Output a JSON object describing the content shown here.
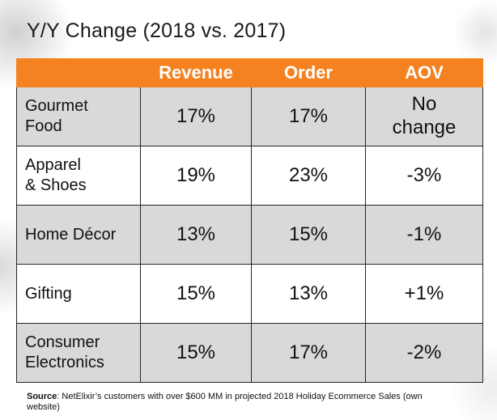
{
  "chart_data": {
    "type": "table",
    "title": "Y/Y Change (2018 vs. 2017)",
    "columns": [
      "",
      "Revenue",
      "Order",
      "AOV"
    ],
    "rows": [
      {
        "label": "Gourmet Food",
        "label_lines": [
          "Gourmet",
          "Food"
        ],
        "revenue": "17%",
        "order": "17%",
        "aov": "No change",
        "aov_lines": [
          "No",
          "change"
        ]
      },
      {
        "label": "Apparel & Shoes",
        "label_lines": [
          "Apparel",
          "& Shoes"
        ],
        "revenue": "19%",
        "order": "23%",
        "aov": "-3%",
        "aov_lines": [
          "-3%"
        ]
      },
      {
        "label": "Home Décor",
        "label_lines": [
          "Home Décor"
        ],
        "revenue": "13%",
        "order": "15%",
        "aov": "-1%",
        "aov_lines": [
          "-1%"
        ]
      },
      {
        "label": "Gifting",
        "label_lines": [
          "Gifting"
        ],
        "revenue": "15%",
        "order": "13%",
        "aov": "+1%",
        "aov_lines": [
          "+1%"
        ]
      },
      {
        "label": "Consumer Electronics",
        "label_lines": [
          "Consumer",
          "Electronics"
        ],
        "revenue": "15%",
        "order": "17%",
        "aov": "-2%",
        "aov_lines": [
          "-2%"
        ]
      }
    ],
    "header_color": "#f58220",
    "stripe_color": "#d9d9d9"
  },
  "source": {
    "label": "Source",
    "text": ": NetElixir’s customers with over $600 MM in projected 2018 Holiday Ecommerce Sales (own website)"
  }
}
